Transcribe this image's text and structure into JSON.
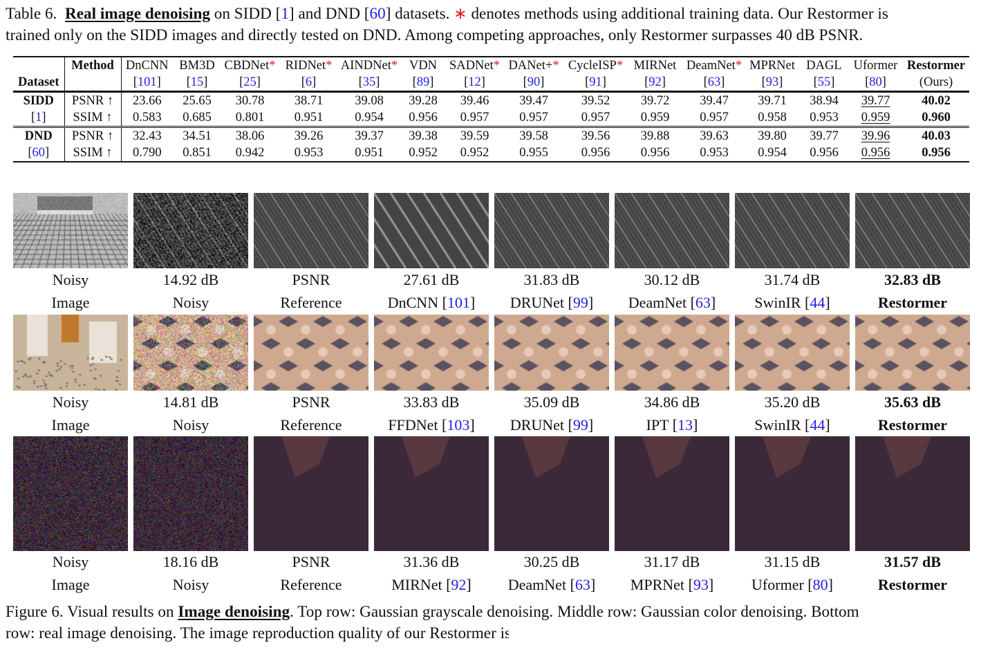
{
  "table_caption": {
    "prefix": "Table 6.",
    "bold_title": "Real image denoising",
    "line1_a": " on SIDD [",
    "cite_sidd": "1",
    "line1_b": "] and DND [",
    "cite_dnd": "60",
    "line1_c": "] datasets. ",
    "star": "∗",
    "line1_d": " denotes methods using additional training data. Our Restormer is",
    "line2": "trained only on the SIDD images and directly tested on DND. Among competing approaches, only Restormer surpasses 40 dB PSNR."
  },
  "table": {
    "dataset_header": "Dataset",
    "method_header": "Method",
    "methods": [
      {
        "name": "DnCNN",
        "star": false,
        "ref": "101"
      },
      {
        "name": "BM3D",
        "star": false,
        "ref": "15"
      },
      {
        "name": "CBDNet",
        "star": true,
        "ref": "25"
      },
      {
        "name": "RIDNet",
        "star": true,
        "ref": "6"
      },
      {
        "name": "AINDNet",
        "star": true,
        "ref": "35"
      },
      {
        "name": "VDN",
        "star": false,
        "ref": "89"
      },
      {
        "name": "SADNet",
        "star": true,
        "ref": "12"
      },
      {
        "name": "DANet+",
        "star": true,
        "ref": "90"
      },
      {
        "name": "CycleISP",
        "star": true,
        "ref": "91"
      },
      {
        "name": "MIRNet",
        "star": false,
        "ref": "92"
      },
      {
        "name": "DeamNet",
        "star": true,
        "ref": "63"
      },
      {
        "name": "MPRNet",
        "star": false,
        "ref": "93"
      },
      {
        "name": "DAGL",
        "star": false,
        "ref": "55"
      },
      {
        "name": "Uformer",
        "star": false,
        "ref": "80"
      },
      {
        "name": "Restormer",
        "star": false,
        "ref": "(Ours)",
        "bold": true
      }
    ],
    "star_symbol": "*",
    "datasets": [
      {
        "name": "SIDD",
        "ref": "1",
        "metrics": [
          {
            "label": "PSNR ↑",
            "values": [
              "23.66",
              "25.65",
              "30.78",
              "38.71",
              "39.08",
              "39.28",
              "39.46",
              "39.47",
              "39.52",
              "39.72",
              "39.47",
              "39.71",
              "38.94",
              "39.77",
              "40.02"
            ]
          },
          {
            "label": "SSIM ↑",
            "values": [
              "0.583",
              "0.685",
              "0.801",
              "0.951",
              "0.954",
              "0.956",
              "0.957",
              "0.957",
              "0.957",
              "0.959",
              "0.957",
              "0.958",
              "0.953",
              "0.959",
              "0.960"
            ]
          }
        ]
      },
      {
        "name": "DND",
        "ref": "60",
        "metrics": [
          {
            "label": "PSNR ↑",
            "values": [
              "32.43",
              "34.51",
              "38.06",
              "39.26",
              "39.37",
              "39.38",
              "39.59",
              "39.58",
              "39.56",
              "39.88",
              "39.63",
              "39.80",
              "39.77",
              "39.96",
              "40.03"
            ]
          },
          {
            "label": "SSIM ↑",
            "values": [
              "0.790",
              "0.851",
              "0.942",
              "0.953",
              "0.951",
              "0.952",
              "0.952",
              "0.955",
              "0.956",
              "0.956",
              "0.953",
              "0.954",
              "0.956",
              "0.956",
              "0.956"
            ]
          }
        ]
      }
    ],
    "second_best_index": 13,
    "best_index": 14
  },
  "figure": {
    "rows": [
      {
        "tiles": [
          {
            "top": "Noisy",
            "bottom": "Image"
          },
          {
            "top": "14.92 dB",
            "bottom": "Noisy"
          },
          {
            "top": "PSNR",
            "bottom": "Reference"
          },
          {
            "top": "27.61 dB",
            "bottom": "DnCNN ",
            "ref": "101"
          },
          {
            "top": "31.83 dB",
            "bottom": "DRUNet ",
            "ref": "99"
          },
          {
            "top": "30.12 dB",
            "bottom": "DeamNet ",
            "ref": "63"
          },
          {
            "top": "31.74 dB",
            "bottom": "SwinIR ",
            "ref": "44"
          },
          {
            "top": "32.83 dB",
            "bottom": "Restormer",
            "bold": true
          }
        ]
      },
      {
        "tiles": [
          {
            "top": "Noisy",
            "bottom": "Image"
          },
          {
            "top": "14.81 dB",
            "bottom": "Noisy"
          },
          {
            "top": "PSNR",
            "bottom": "Reference"
          },
          {
            "top": "33.83 dB",
            "bottom": "FFDNet ",
            "ref": "103"
          },
          {
            "top": "35.09 dB",
            "bottom": "DRUNet ",
            "ref": "99"
          },
          {
            "top": "34.86 dB",
            "bottom": "IPT ",
            "ref": "13"
          },
          {
            "top": "35.20 dB",
            "bottom": "SwinIR ",
            "ref": "44"
          },
          {
            "top": "35.63 dB",
            "bottom": "Restormer",
            "bold": true
          }
        ]
      },
      {
        "tiles": [
          {
            "top": "Noisy",
            "bottom": "Image"
          },
          {
            "top": "18.16 dB",
            "bottom": "Noisy"
          },
          {
            "top": "PSNR",
            "bottom": "Reference"
          },
          {
            "top": "31.36 dB",
            "bottom": "MIRNet ",
            "ref": "92"
          },
          {
            "top": "30.25 dB",
            "bottom": "DeamNet ",
            "ref": "63"
          },
          {
            "top": "31.17 dB",
            "bottom": "MPRNet ",
            "ref": "93"
          },
          {
            "top": "31.15 dB",
            "bottom": "Uformer ",
            "ref": "80"
          },
          {
            "top": "31.57 dB",
            "bottom": "Restormer",
            "bold": true
          }
        ]
      }
    ]
  },
  "figure_caption": {
    "prefix": "Figure 6.  Visual results on ",
    "bold_title": "Image denoising",
    "line1_rest": ".  Top row:  Gaussian grayscale denoising.  Middle row:  Gaussian color denoising.  Bottom",
    "line2": "row: real image denoising. The image reproduction quality of our Restormer is more faithful to the ground-truth"
  }
}
